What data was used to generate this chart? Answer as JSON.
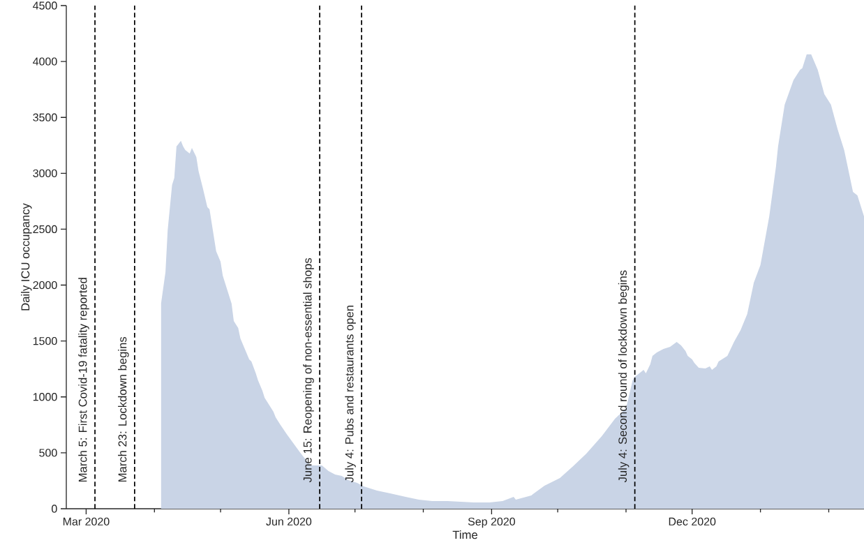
{
  "chart_data": {
    "type": "area",
    "xlabel": "Time",
    "ylabel": "Daily ICU occupancy",
    "color": "#c9d4e6",
    "x": [
      "2020-04-04",
      "2020-04-06",
      "2020-04-07",
      "2020-04-09",
      "2020-04-10",
      "2020-04-11",
      "2020-04-13",
      "2020-04-14",
      "2020-04-15",
      "2020-04-17",
      "2020-04-18",
      "2020-04-20",
      "2020-04-21",
      "2020-04-23",
      "2020-04-25",
      "2020-04-26",
      "2020-04-28",
      "2020-04-29",
      "2020-05-01",
      "2020-05-02",
      "2020-05-04",
      "2020-05-06",
      "2020-05-07",
      "2020-05-09",
      "2020-05-10",
      "2020-05-12",
      "2020-05-14",
      "2020-05-15",
      "2020-05-17",
      "2020-05-18",
      "2020-05-20",
      "2020-05-21",
      "2020-05-23",
      "2020-05-25",
      "2020-05-26",
      "2020-05-28",
      "2020-05-31",
      "2020-06-03",
      "2020-06-06",
      "2020-06-09",
      "2020-06-11",
      "2020-06-16",
      "2020-06-19",
      "2020-06-22",
      "2020-06-25",
      "2020-06-28",
      "2020-07-02",
      "2020-07-05",
      "2020-07-08",
      "2020-07-11",
      "2020-07-17",
      "2020-07-24",
      "2020-07-30",
      "2020-08-05",
      "2020-08-12",
      "2020-08-18",
      "2020-08-24",
      "2020-08-31",
      "2020-09-06",
      "2020-09-11",
      "2020-09-12",
      "2020-09-19",
      "2020-09-25",
      "2020-10-02",
      "2020-10-08",
      "2020-10-14",
      "2020-10-21",
      "2020-10-27",
      "2020-11-01",
      "2020-11-02",
      "2020-11-04",
      "2020-11-05",
      "2020-11-09",
      "2020-11-10",
      "2020-11-12",
      "2020-11-13",
      "2020-11-15",
      "2020-11-18",
      "2020-11-21",
      "2020-11-24",
      "2020-11-26",
      "2020-11-28",
      "2020-11-29",
      "2020-12-01",
      "2020-12-02",
      "2020-12-04",
      "2020-12-07",
      "2020-12-09",
      "2020-12-10",
      "2020-12-12",
      "2020-12-13",
      "2020-12-17",
      "2020-12-20",
      "2020-12-23",
      "2020-12-26",
      "2020-12-29",
      "2021-01-01",
      "2021-01-05",
      "2021-01-08",
      "2021-01-09",
      "2021-01-12",
      "2021-01-16",
      "2021-01-19",
      "2021-01-20",
      "2021-01-22",
      "2021-01-24",
      "2021-01-27",
      "2021-01-30",
      "2021-02-02",
      "2021-02-05",
      "2021-02-08",
      "2021-02-12",
      "2021-02-14",
      "2021-02-17"
    ],
    "values": [
      1835,
      2116,
      2490,
      2896,
      2959,
      3240,
      3290,
      3240,
      3208,
      3177,
      3227,
      3146,
      3021,
      2865,
      2697,
      2678,
      2428,
      2303,
      2210,
      2085,
      1960,
      1835,
      1679,
      1617,
      1523,
      1429,
      1336,
      1317,
      1211,
      1149,
      1055,
      992,
      930,
      868,
      818,
      755,
      668,
      587,
      506,
      431,
      387,
      387,
      337,
      306,
      293,
      256,
      231,
      200,
      181,
      162,
      137,
      106,
      81,
      69,
      69,
      62,
      56,
      56,
      69,
      106,
      81,
      119,
      206,
      275,
      381,
      493,
      649,
      805,
      899,
      980,
      1149,
      1180,
      1242,
      1211,
      1292,
      1367,
      1398,
      1429,
      1448,
      1492,
      1461,
      1411,
      1367,
      1336,
      1305,
      1261,
      1255,
      1273,
      1242,
      1273,
      1317,
      1367,
      1492,
      1598,
      1742,
      2022,
      2179,
      2615,
      3052,
      3240,
      3614,
      3833,
      3926,
      3939,
      4064,
      4064,
      3926,
      3708,
      3614,
      3396,
      3208,
      2834,
      2803,
      2615
    ],
    "xlim": [
      "2020-02-21",
      "2021-02-17"
    ],
    "xticks": [
      {
        "value": "2020-03-01",
        "label": "Mar 2020"
      },
      {
        "value": "2020-04-01",
        "label": null
      },
      {
        "value": "2020-05-01",
        "label": null
      },
      {
        "value": "2020-06-01",
        "label": "Jun 2020"
      },
      {
        "value": "2020-07-01",
        "label": null
      },
      {
        "value": "2020-08-01",
        "label": null
      },
      {
        "value": "2020-09-01",
        "label": "Sep 2020"
      },
      {
        "value": "2020-10-01",
        "label": null
      },
      {
        "value": "2020-11-01",
        "label": null
      },
      {
        "value": "2020-12-01",
        "label": "Dec 2020"
      },
      {
        "value": "2021-01-01",
        "label": null
      },
      {
        "value": "2021-02-01",
        "label": null
      }
    ],
    "ylim": [
      0,
      4500
    ],
    "yticks": [
      0,
      500,
      1000,
      1500,
      2000,
      2500,
      3000,
      3500,
      4000,
      4500
    ],
    "ref_lines": [
      {
        "axis": "x",
        "value": "2020-03-05",
        "label": "March 5: First Covid-19 fatality reported",
        "color": "#000000",
        "line_style": "dashed"
      },
      {
        "axis": "x",
        "value": "2020-03-23",
        "label": "March 23: Lockdown begins",
        "color": "#000000",
        "line_style": "dashed"
      },
      {
        "axis": "x",
        "value": "2020-06-15",
        "label": "June 15: Reopening of non-essential shops",
        "color": "#000000",
        "line_style": "dashed"
      },
      {
        "axis": "x",
        "value": "2020-07-04",
        "label": "July 4: Pubs and restaurants open",
        "color": "#000000",
        "line_style": "dashed"
      },
      {
        "axis": "x",
        "value": "2020-11-05",
        "label": "July 4: Second round of lockdown begins",
        "color": "#000000",
        "line_style": "dashed"
      }
    ]
  }
}
